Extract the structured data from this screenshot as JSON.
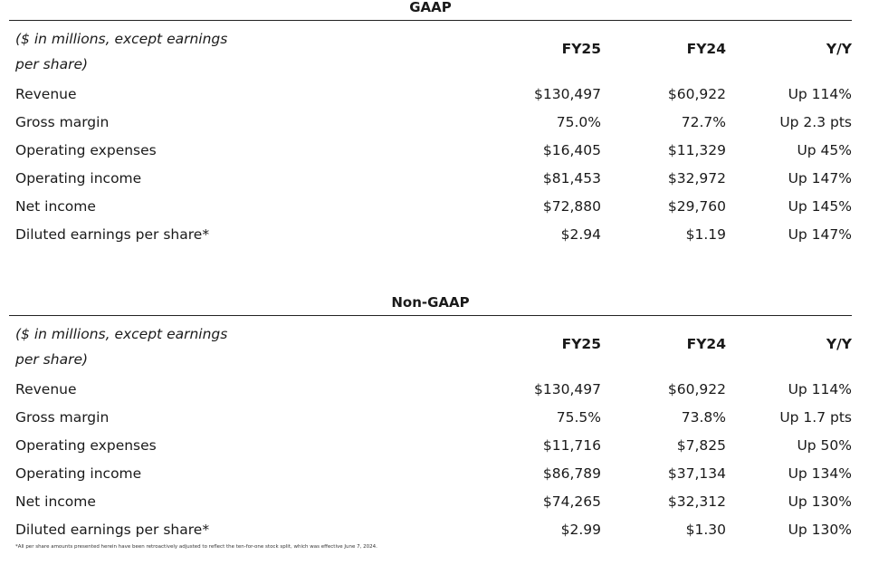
{
  "gaap": {
    "title": "GAAP",
    "header_note_line1": "($ in millions, except earnings",
    "header_note_line2": "per share)",
    "columns": [
      "FY25",
      "FY24",
      "Y/Y"
    ],
    "rows": [
      {
        "label": "Revenue",
        "fy25": "$130,497",
        "fy24": "$60,922",
        "yy": "Up 114%"
      },
      {
        "label": "Gross margin",
        "fy25": "75.0%",
        "fy24": "72.7%",
        "yy": "Up 2.3 pts"
      },
      {
        "label": "Operating expenses",
        "fy25": "$16,405",
        "fy24": "$11,329",
        "yy": "Up 45%"
      },
      {
        "label": "Operating income",
        "fy25": "$81,453",
        "fy24": "$32,972",
        "yy": "Up 147%"
      },
      {
        "label": "Net income",
        "fy25": "$72,880",
        "fy24": "$29,760",
        "yy": "Up 145%"
      },
      {
        "label": "Diluted earnings per share*",
        "fy25": "$2.94",
        "fy24": "$1.19",
        "yy": "Up 147%"
      }
    ]
  },
  "nongaap": {
    "title": "Non-GAAP",
    "header_note_line1": "($ in millions, except earnings",
    "header_note_line2": "per share)",
    "columns": [
      "FY25",
      "FY24",
      "Y/Y"
    ],
    "rows": [
      {
        "label": "Revenue",
        "fy25": "$130,497",
        "fy24": "$60,922",
        "yy": "Up 114%"
      },
      {
        "label": "Gross margin",
        "fy25": "75.5%",
        "fy24": "73.8%",
        "yy": "Up 1.7 pts"
      },
      {
        "label": "Operating expenses",
        "fy25": "$11,716",
        "fy24": "$7,825",
        "yy": "Up 50%"
      },
      {
        "label": "Operating income",
        "fy25": "$86,789",
        "fy24": "$37,134",
        "yy": "Up 134%"
      },
      {
        "label": "Net income",
        "fy25": "$74,265",
        "fy24": "$32,312",
        "yy": "Up 130%"
      },
      {
        "label": "Diluted earnings per share*",
        "fy25": "$2.99",
        "fy24": "$1.30",
        "yy": "Up 130%"
      }
    ]
  },
  "footnote": "*All per share amounts presented herein have been retroactively adjusted to reflect the ten-for-one stock split, which was effective June 7, 2024."
}
